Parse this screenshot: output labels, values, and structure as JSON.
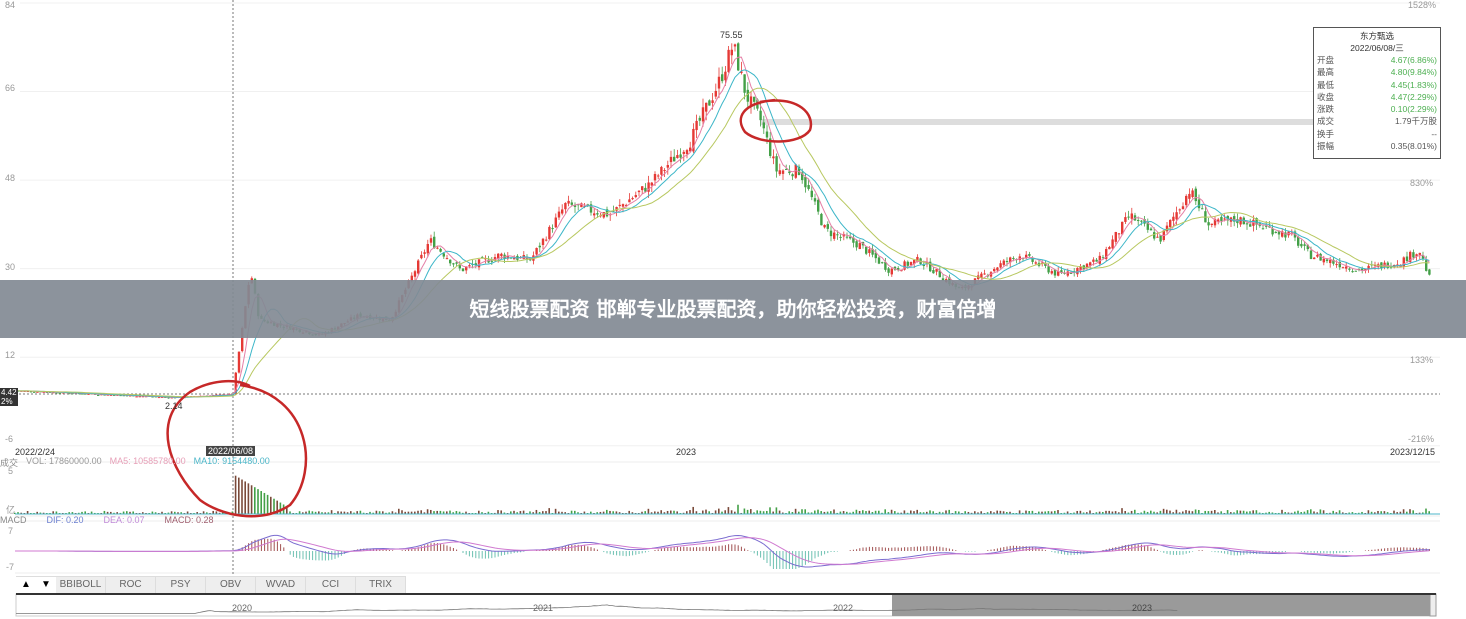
{
  "chart_data": {
    "type": "candlestick",
    "y_axis_left": {
      "ticks": [
        84,
        66,
        48,
        30,
        12,
        -6
      ],
      "range": [
        -6,
        84
      ]
    },
    "y_axis_right": {
      "ticks": [
        "1528%",
        "830%",
        "133%",
        "-216%"
      ]
    },
    "x_labels": {
      "start": "2022/2/24",
      "crosshair": "2022/06/08",
      "mid": "2023",
      "end": "2023/12/15"
    },
    "annotations": {
      "peak": "75.55",
      "low": "2.14",
      "left_tag_top": "4.42",
      "left_tag_bottom": "2%"
    },
    "close_series": [
      {
        "date": "2022-02-24",
        "close": 5.2
      },
      {
        "date": "2022-05-10",
        "close": 3.8
      },
      {
        "date": "2022-06-08",
        "close": 4.47
      },
      {
        "date": "2022-06-16",
        "close": 29.6
      },
      {
        "date": "2022-06-20",
        "close": 19.6
      },
      {
        "date": "2022-07-18",
        "close": 16.5
      },
      {
        "date": "2022-08-05",
        "close": 20.6
      },
      {
        "date": "2022-08-19",
        "close": 19.6
      },
      {
        "date": "2022-09-06",
        "close": 35.8
      },
      {
        "date": "2022-09-20",
        "close": 29.7
      },
      {
        "date": "2022-10-08",
        "close": 32.8
      },
      {
        "date": "2022-10-22",
        "close": 31.8
      },
      {
        "date": "2022-11-07",
        "close": 43
      },
      {
        "date": "2022-11-27",
        "close": 41
      },
      {
        "date": "2022-12-15",
        "close": 47
      },
      {
        "date": "2023-01-03",
        "close": 56
      },
      {
        "date": "2023-01-17",
        "close": 68.5
      },
      {
        "date": "2023-01-23",
        "close": 75.55
      },
      {
        "date": "2023-01-29",
        "close": 65.3
      },
      {
        "date": "2023-02-05",
        "close": 60
      },
      {
        "date": "2023-02-12",
        "close": 50
      },
      {
        "date": "2023-02-23",
        "close": 50
      },
      {
        "date": "2023-03-07",
        "close": 37.8
      },
      {
        "date": "2023-03-23",
        "close": 34.8
      },
      {
        "date": "2023-04-06",
        "close": 29.7
      },
      {
        "date": "2023-04-20",
        "close": 31.8
      },
      {
        "date": "2023-05-09",
        "close": 25.6
      },
      {
        "date": "2023-05-27",
        "close": 30.7
      },
      {
        "date": "2023-06-06",
        "close": 32.8
      },
      {
        "date": "2023-06-24",
        "close": 28.7
      },
      {
        "date": "2023-07-13",
        "close": 31.8
      },
      {
        "date": "2023-07-27",
        "close": 40.9
      },
      {
        "date": "2023-08-10",
        "close": 35.8
      },
      {
        "date": "2023-08-24",
        "close": 46
      },
      {
        "date": "2023-09-02",
        "close": 38.9
      },
      {
        "date": "2023-09-16",
        "close": 40
      },
      {
        "date": "2023-10-10",
        "close": 36.8
      },
      {
        "date": "2023-10-19",
        "close": 32.8
      },
      {
        "date": "2023-11-11",
        "close": 29.7
      },
      {
        "date": "2023-11-30",
        "close": 31.4
      },
      {
        "date": "2023-12-09",
        "close": 33.8
      },
      {
        "date": "2023-12-15",
        "close": 26.7
      }
    ],
    "colors": {
      "up": "#e53935",
      "down": "#43a047",
      "ma5": "#e57fa6",
      "ma10": "#3cb6c8",
      "ma20": "#b8c860",
      "annotation_circle": "#c62828"
    }
  },
  "info_box": {
    "title": "东方甄选",
    "date": "2022/06/08/三",
    "rows": [
      {
        "label": "开盘",
        "value": "4.67(6.86%)",
        "green": true
      },
      {
        "label": "最高",
        "value": "4.80(9.84%)",
        "green": true
      },
      {
        "label": "最低",
        "value": "4.45(1.83%)",
        "green": true
      },
      {
        "label": "收盘",
        "value": "4.47(2.29%)",
        "green": true
      },
      {
        "label": "涨跌",
        "value": "0.10(2.29%)",
        "green": true
      },
      {
        "label": "成交",
        "value": "1.79千万股",
        "green": false
      },
      {
        "label": "换手",
        "value": "--",
        "green": false
      },
      {
        "label": "振幅",
        "value": "0.35(8.01%)",
        "green": false
      }
    ]
  },
  "volume": {
    "label": "成交",
    "vol": "VOL: 17860000.00",
    "ma5": "MA5: 10585780.00",
    "ma10": "MA10: 9154480.00",
    "tick_top": "5",
    "unit": "亿"
  },
  "macd": {
    "label": "MACD",
    "dif": "DIF: 0.20",
    "dea": "DEA: 0.07",
    "macd": "MACD: 0.28",
    "tick_top": "7",
    "tick_bottom": "-7"
  },
  "tabs": {
    "up": "▲",
    "down": "▼",
    "items": [
      "BBIBOLL",
      "ROC",
      "PSY",
      "OBV",
      "WVAD",
      "CCI",
      "TRIX"
    ]
  },
  "navigator": {
    "labels": [
      "2020",
      "2021",
      "2022",
      "2023"
    ]
  },
  "banner": "短线股票配资 邯郸专业股票配资，助你轻松投资，财富倍增"
}
